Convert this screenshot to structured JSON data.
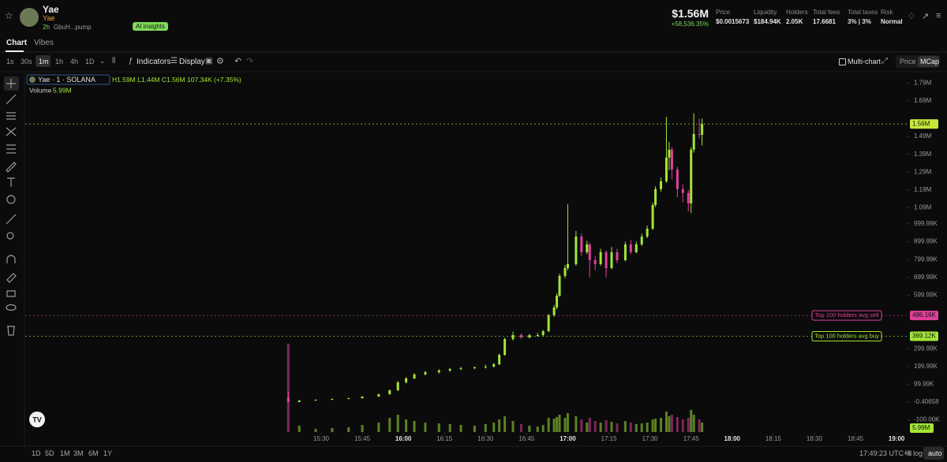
{
  "header": {
    "name": "Yae",
    "ticker": "Yae",
    "age": "2h",
    "address": "GbuH...pump",
    "ai_button": "AI insights",
    "market_cap": "$1.56M",
    "change": "+58,536.35%",
    "stats": [
      {
        "label": "Price",
        "value": "$0.0015673"
      },
      {
        "label": "Liquidity",
        "value": "$184.94K"
      },
      {
        "label": "Holders",
        "value": "2.05K"
      },
      {
        "label": "Total fees",
        "value": "17.6681"
      },
      {
        "label": "Total taxes",
        "value": "3% | 3%"
      },
      {
        "label": "Risk",
        "value": "Normal"
      }
    ]
  },
  "tabs": [
    "Chart",
    "Vibes"
  ],
  "toolbar": {
    "intervals": [
      "1s",
      "30s",
      "1m",
      "1h",
      "4h",
      "1D"
    ],
    "indicators": "Indicators",
    "display": "Display",
    "multi_chart": "Multi-chart",
    "scale_modes": [
      "Price",
      "MCap"
    ]
  },
  "chart_data": {
    "type": "candlestick",
    "symbol": "Yae · 1 · SOLANA",
    "ohlc_label": "H1.59M L1.44M C1.56M 107.34K (+7.35%)",
    "volume_label": "Volume",
    "volume_value": "5.99M",
    "up_color": "#a3e635",
    "down_color": "#e0409a",
    "xlim": [
      "13:42",
      "19:04"
    ],
    "xticks": [
      "15:30",
      "15:45",
      "16:00",
      "16:15",
      "16:30",
      "16:45",
      "17:00",
      "17:15",
      "17:30",
      "17:45",
      "18:00",
      "18:15",
      "18:30",
      "18:45",
      "19:00"
    ],
    "ylim": [
      -168000,
      1840000
    ],
    "yticks": [
      {
        "value": 1790000,
        "label": "1.79M"
      },
      {
        "value": 1690000,
        "label": "1.69M"
      },
      {
        "value": 1490000,
        "label": "1.49M"
      },
      {
        "value": 1390000,
        "label": "1.39M"
      },
      {
        "value": 1290000,
        "label": "1.29M"
      },
      {
        "value": 1190000,
        "label": "1.19M"
      },
      {
        "value": 1090000,
        "label": "1.09M"
      },
      {
        "value": 999990,
        "label": "999.99K"
      },
      {
        "value": 899990,
        "label": "899.99K"
      },
      {
        "value": 799990,
        "label": "799.99K"
      },
      {
        "value": 699990,
        "label": "699.99K"
      },
      {
        "value": 599990,
        "label": "599.99K"
      },
      {
        "value": 299990,
        "label": "299.99K"
      },
      {
        "value": 199990,
        "label": "199.99K"
      },
      {
        "value": 99990,
        "label": "99.99K"
      },
      {
        "value": -0.40658,
        "label": "-0.40658"
      },
      {
        "value": -100000,
        "label": "-100.00K"
      }
    ],
    "volume_ylim": [
      0,
      600000
    ],
    "price_lines": [
      {
        "value": 1560000,
        "label": "1.56M",
        "color": "#c6e83a"
      },
      {
        "value": 486160,
        "label": "486.16K",
        "name": "Top 100 holders avg sell",
        "color": "#e0409a"
      },
      {
        "value": 369120,
        "label": "369.12K",
        "name": "Top 100 holders avg buy",
        "color": "#a3e635"
      }
    ],
    "candles": [
      {
        "time": "15:18",
        "open": 25000,
        "high": 60000,
        "low": 0,
        "close": 0,
        "volume": 560000
      },
      {
        "time": "15:22",
        "open": 0,
        "high": 12000,
        "low": 0,
        "close": 9000,
        "volume": 40000
      },
      {
        "time": "15:28",
        "open": 9000,
        "high": 15000,
        "low": 8000,
        "close": 13000,
        "volume": 20000
      },
      {
        "time": "15:34",
        "open": 13000,
        "high": 20000,
        "low": 12000,
        "close": 18000,
        "volume": 25000
      },
      {
        "time": "15:40",
        "open": 18000,
        "high": 24000,
        "low": 17000,
        "close": 22000,
        "volume": 30000
      },
      {
        "time": "15:45",
        "open": 22000,
        "high": 33000,
        "low": 20000,
        "close": 31000,
        "volume": 45000
      },
      {
        "time": "15:51",
        "open": 31000,
        "high": 47000,
        "low": 29000,
        "close": 44000,
        "volume": 60000
      },
      {
        "time": "15:55",
        "open": 44000,
        "high": 70000,
        "low": 42000,
        "close": 66000,
        "volume": 90000
      },
      {
        "time": "15:58",
        "open": 66000,
        "high": 118000,
        "low": 62000,
        "close": 111000,
        "volume": 110000
      },
      {
        "time": "16:01",
        "open": 111000,
        "high": 140000,
        "low": 105000,
        "close": 133000,
        "volume": 80000
      },
      {
        "time": "16:04",
        "open": 133000,
        "high": 162000,
        "low": 128000,
        "close": 155000,
        "volume": 70000
      },
      {
        "time": "16:08",
        "open": 155000,
        "high": 175000,
        "low": 150000,
        "close": 168000,
        "volume": 60000
      },
      {
        "time": "16:13",
        "open": 168000,
        "high": 185000,
        "low": 160000,
        "close": 177000,
        "volume": 55000
      },
      {
        "time": "16:17",
        "open": 177000,
        "high": 192000,
        "low": 170000,
        "close": 186000,
        "volume": 50000
      },
      {
        "time": "16:21",
        "open": 186000,
        "high": 198000,
        "low": 180000,
        "close": 190000,
        "volume": 45000
      },
      {
        "time": "16:26",
        "open": 190000,
        "high": 200000,
        "low": 185000,
        "close": 195000,
        "volume": 40000
      },
      {
        "time": "16:30",
        "open": 195000,
        "high": 210000,
        "low": 188000,
        "close": 199000,
        "volume": 50000
      },
      {
        "time": "16:33",
        "open": 199000,
        "high": 220000,
        "low": 195000,
        "close": 212000,
        "volume": 60000
      },
      {
        "time": "16:35",
        "open": 212000,
        "high": 272000,
        "low": 208000,
        "close": 265000,
        "volume": 80000
      },
      {
        "time": "16:37",
        "open": 265000,
        "high": 360000,
        "low": 260000,
        "close": 354000,
        "volume": 100000
      },
      {
        "time": "16:40",
        "open": 354000,
        "high": 395000,
        "low": 345000,
        "close": 376000,
        "volume": 70000
      },
      {
        "time": "16:43",
        "open": 376000,
        "high": 385000,
        "low": 355000,
        "close": 363000,
        "volume": 50000
      },
      {
        "time": "16:46",
        "open": 363000,
        "high": 382000,
        "low": 358000,
        "close": 376000,
        "volume": 40000
      },
      {
        "time": "16:49",
        "open": 376000,
        "high": 388000,
        "low": 366000,
        "close": 376000,
        "volume": 35000
      },
      {
        "time": "16:51",
        "open": 376000,
        "high": 405000,
        "low": 370000,
        "close": 398000,
        "volume": 45000
      },
      {
        "time": "16:53",
        "open": 398000,
        "high": 495000,
        "low": 392000,
        "close": 487000,
        "volume": 90000
      },
      {
        "time": "16:55",
        "open": 487000,
        "high": 545000,
        "low": 478000,
        "close": 531000,
        "volume": 85000
      },
      {
        "time": "16:56",
        "open": 531000,
        "high": 610000,
        "low": 520000,
        "close": 597000,
        "volume": 95000
      },
      {
        "time": "16:57",
        "open": 597000,
        "high": 720000,
        "low": 590000,
        "close": 708000,
        "volume": 110000
      },
      {
        "time": "16:59",
        "open": 708000,
        "high": 770000,
        "low": 695000,
        "close": 752000,
        "volume": 90000
      },
      {
        "time": "17:00",
        "open": 752000,
        "high": 1110000,
        "low": 740000,
        "close": 774000,
        "volume": 120000
      },
      {
        "time": "17:03",
        "open": 774000,
        "high": 960000,
        "low": 765000,
        "close": 929000,
        "volume": 100000
      },
      {
        "time": "17:05",
        "open": 929000,
        "high": 945000,
        "low": 820000,
        "close": 841000,
        "volume": 80000
      },
      {
        "time": "17:07",
        "open": 841000,
        "high": 905000,
        "low": 830000,
        "close": 885000,
        "volume": 60000
      },
      {
        "time": "17:08",
        "open": 885000,
        "high": 895000,
        "low": 700000,
        "close": 796000,
        "volume": 90000
      },
      {
        "time": "17:10",
        "open": 796000,
        "high": 820000,
        "low": 740000,
        "close": 774000,
        "volume": 70000
      },
      {
        "time": "17:12",
        "open": 774000,
        "high": 860000,
        "low": 765000,
        "close": 841000,
        "volume": 60000
      },
      {
        "time": "17:14",
        "open": 841000,
        "high": 850000,
        "low": 700000,
        "close": 752000,
        "volume": 75000
      },
      {
        "time": "17:16",
        "open": 752000,
        "high": 870000,
        "low": 745000,
        "close": 841000,
        "volume": 65000
      },
      {
        "time": "17:18",
        "open": 841000,
        "high": 860000,
        "low": 780000,
        "close": 796000,
        "volume": 55000
      },
      {
        "time": "17:21",
        "open": 796000,
        "high": 900000,
        "low": 790000,
        "close": 885000,
        "volume": 70000
      },
      {
        "time": "17:23",
        "open": 885000,
        "high": 910000,
        "low": 830000,
        "close": 841000,
        "volume": 60000
      },
      {
        "time": "17:25",
        "open": 841000,
        "high": 900000,
        "low": 835000,
        "close": 885000,
        "volume": 50000
      },
      {
        "time": "17:27",
        "open": 885000,
        "high": 945000,
        "low": 875000,
        "close": 929000,
        "volume": 55000
      },
      {
        "time": "17:29",
        "open": 929000,
        "high": 990000,
        "low": 920000,
        "close": 973000,
        "volume": 60000
      },
      {
        "time": "17:31",
        "open": 973000,
        "high": 1120000,
        "low": 965000,
        "close": 1106000,
        "volume": 80000
      },
      {
        "time": "17:32",
        "open": 1106000,
        "high": 1210000,
        "low": 1095000,
        "close": 1195000,
        "volume": 85000
      },
      {
        "time": "17:34",
        "open": 1195000,
        "high": 1260000,
        "low": 1180000,
        "close": 1239000,
        "volume": 90000
      },
      {
        "time": "17:36",
        "open": 1239000,
        "high": 1600000,
        "low": 1230000,
        "close": 1372000,
        "volume": 130000
      },
      {
        "time": "17:37",
        "open": 1372000,
        "high": 1460000,
        "low": 1300000,
        "close": 1416000,
        "volume": 100000
      },
      {
        "time": "17:38",
        "open": 1416000,
        "high": 1430000,
        "low": 1250000,
        "close": 1305000,
        "volume": 110000
      },
      {
        "time": "17:40",
        "open": 1305000,
        "high": 1320000,
        "low": 1150000,
        "close": 1195000,
        "volume": 95000
      },
      {
        "time": "17:42",
        "open": 1195000,
        "high": 1220000,
        "low": 1120000,
        "close": 1173000,
        "volume": 80000
      },
      {
        "time": "17:44",
        "open": 1173000,
        "high": 1190000,
        "low": 1070000,
        "close": 1115000,
        "volume": 90000
      },
      {
        "time": "17:45",
        "open": 1115000,
        "high": 1430000,
        "low": 1060000,
        "close": 1416000,
        "volume": 140000
      },
      {
        "time": "17:46",
        "open": 1416000,
        "high": 1620000,
        "low": 1400000,
        "close": 1504000,
        "volume": 110000
      },
      {
        "time": "17:48",
        "open": 1504000,
        "high": 1590000,
        "low": 1480000,
        "close": 1500000,
        "volume": 80000
      },
      {
        "time": "17:49",
        "open": 1500000,
        "high": 1590000,
        "low": 1440000,
        "close": 1560000,
        "volume": 60000
      }
    ]
  },
  "footer": {
    "ranges": [
      "1D",
      "5D",
      "1M",
      "3M",
      "6M",
      "1Y"
    ],
    "clock": "17:49:23 UTC+8",
    "options": [
      "%",
      "log",
      "auto"
    ]
  }
}
